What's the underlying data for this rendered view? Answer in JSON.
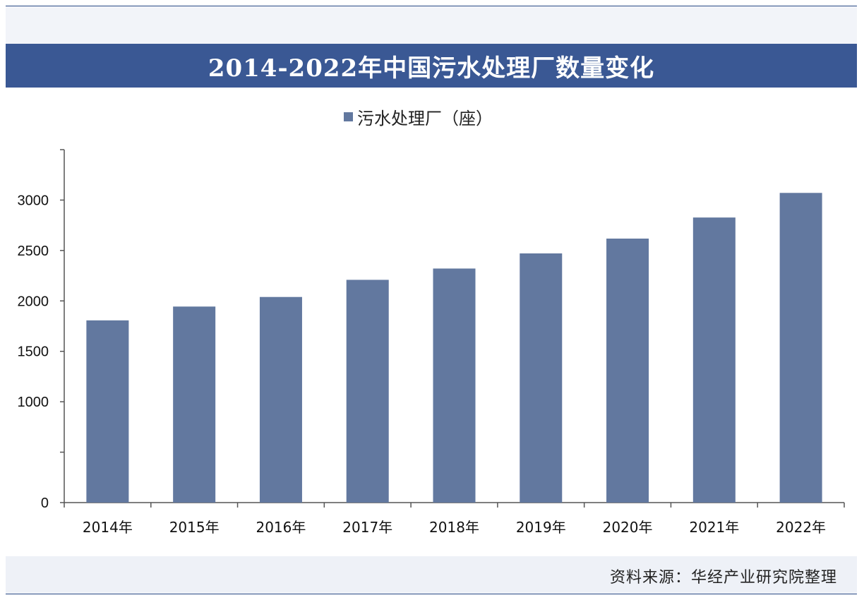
{
  "title": "2014-2022年中国污水处理厂数量变化",
  "legend_label": "污水处理厂（座）",
  "source": "资料来源：华经产业研究院整理",
  "colors": {
    "bar": "#62789f",
    "title_bg": "#3a5894",
    "axis": "#555555"
  },
  "chart_data": {
    "type": "bar",
    "categories": [
      "2014年",
      "2015年",
      "2016年",
      "2017年",
      "2018年",
      "2019年",
      "2020年",
      "2021年",
      "2022年"
    ],
    "series": [
      {
        "name": "污水处理厂（座）",
        "values": [
          1807,
          1944,
          2039,
          2209,
          2321,
          2471,
          2618,
          2827,
          3071
        ]
      }
    ],
    "yticks": [
      0,
      1000,
      1500,
      2000,
      2500,
      3000
    ],
    "ylim": [
      0,
      3500
    ],
    "grid": false,
    "legend": "top-center"
  }
}
